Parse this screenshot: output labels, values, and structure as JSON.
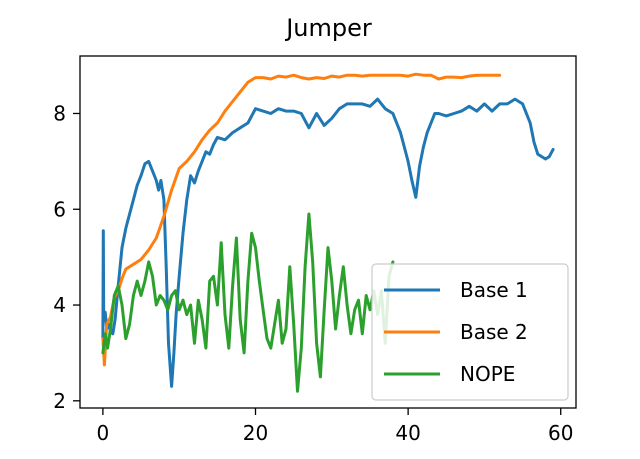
{
  "chart_data": {
    "type": "line",
    "title": "Jumper",
    "xlabel": "",
    "ylabel": "",
    "xlim": [
      -3,
      62
    ],
    "ylim": [
      1.85,
      9.2
    ],
    "xticks": [
      0,
      20,
      40,
      60
    ],
    "yticks": [
      2,
      4,
      6,
      8
    ],
    "grid": false,
    "legend_position": "lower-right",
    "series": [
      {
        "name": "Base 1",
        "color": "#1f77b4",
        "x": [
          0,
          0.05,
          0.1,
          0.3,
          0.5,
          0.8,
          1,
          1.3,
          1.6,
          2,
          2.5,
          3,
          3.5,
          4,
          4.5,
          5,
          5.5,
          6,
          6.5,
          7,
          7.3,
          7.6,
          8,
          8.3,
          8.6,
          9,
          9.3,
          9.6,
          10,
          10.5,
          11,
          11.5,
          12,
          12.5,
          13,
          13.5,
          14,
          14.5,
          15,
          16,
          17,
          18,
          19,
          20,
          21,
          22,
          23,
          24,
          25,
          26,
          27,
          28,
          29,
          30,
          31,
          32,
          33,
          34,
          35,
          36,
          37,
          38,
          39,
          40,
          40.5,
          41,
          41.5,
          42,
          42.5,
          43,
          43.5,
          44,
          45,
          46,
          47,
          48,
          49,
          50,
          51,
          52,
          53,
          54,
          55,
          56,
          56.5,
          57,
          57.5,
          58,
          58.5,
          59
        ],
        "y": [
          3.3,
          5.55,
          3.75,
          3.85,
          3.5,
          3.6,
          3.45,
          3.4,
          3.7,
          4.4,
          5.2,
          5.6,
          5.9,
          6.2,
          6.5,
          6.7,
          6.95,
          7.0,
          6.8,
          6.6,
          6.4,
          6.6,
          6.2,
          4.8,
          3.2,
          2.3,
          3.0,
          3.8,
          4.6,
          5.5,
          6.2,
          6.7,
          6.55,
          6.8,
          7.0,
          7.2,
          7.15,
          7.35,
          7.5,
          7.45,
          7.6,
          7.7,
          7.8,
          8.1,
          8.05,
          8.0,
          8.1,
          8.05,
          8.05,
          8.0,
          7.7,
          8.0,
          7.75,
          7.9,
          8.1,
          8.2,
          8.2,
          8.2,
          8.15,
          8.3,
          8.1,
          8.0,
          7.6,
          7.0,
          6.6,
          6.25,
          6.9,
          7.3,
          7.6,
          7.8,
          8.0,
          8.0,
          7.95,
          8.0,
          8.05,
          8.15,
          8.05,
          8.2,
          8.05,
          8.2,
          8.2,
          8.3,
          8.2,
          7.8,
          7.4,
          7.15,
          7.1,
          7.05,
          7.1,
          7.25
        ]
      },
      {
        "name": "Base 2",
        "color": "#ff7f0e",
        "x": [
          0,
          0.2,
          0.5,
          1,
          1.5,
          2,
          2.5,
          3,
          4,
          5,
          6,
          7,
          8,
          9,
          10,
          11,
          12,
          13,
          14,
          15,
          16,
          17,
          18,
          19,
          20,
          21,
          22,
          23,
          24,
          25,
          26,
          27,
          28,
          29,
          30,
          31,
          32,
          33,
          34,
          35,
          36,
          37,
          38,
          39,
          40,
          41,
          42,
          43,
          44,
          45,
          46,
          47,
          48,
          49,
          50,
          51,
          52
        ],
        "y": [
          3.3,
          2.75,
          3.6,
          3.75,
          4.15,
          4.3,
          4.55,
          4.75,
          4.85,
          4.95,
          5.15,
          5.4,
          5.85,
          6.4,
          6.85,
          7.0,
          7.2,
          7.45,
          7.65,
          7.8,
          8.05,
          8.25,
          8.45,
          8.65,
          8.75,
          8.75,
          8.72,
          8.78,
          8.76,
          8.8,
          8.75,
          8.72,
          8.75,
          8.73,
          8.78,
          8.76,
          8.8,
          8.8,
          8.78,
          8.8,
          8.8,
          8.8,
          8.8,
          8.8,
          8.78,
          8.82,
          8.8,
          8.8,
          8.72,
          8.76,
          8.76,
          8.75,
          8.78,
          8.8,
          8.8,
          8.8,
          8.8
        ]
      },
      {
        "name": "NOPE",
        "color": "#2ca02c",
        "x": [
          0,
          0.3,
          0.6,
          1,
          1.5,
          2,
          2.5,
          3,
          3.5,
          4,
          4.5,
          5,
          5.5,
          6,
          6.5,
          7,
          7.5,
          8,
          8.5,
          9,
          9.5,
          10,
          10.5,
          11,
          11.5,
          12,
          12.5,
          13,
          13.5,
          14,
          14.5,
          15,
          15.5,
          16,
          16.5,
          17,
          17.5,
          18,
          18.5,
          19,
          19.5,
          20,
          20.5,
          21,
          21.5,
          22,
          22.5,
          23,
          23.5,
          24,
          24.5,
          25,
          25.5,
          26,
          26.5,
          27,
          27.5,
          28,
          28.5,
          29,
          29.5,
          30,
          30.5,
          31,
          31.5,
          32,
          32.5,
          33,
          33.5,
          34,
          34.5,
          35,
          35.5,
          36,
          36.5,
          37,
          37.5,
          38
        ],
        "y": [
          3.0,
          3.4,
          3.1,
          3.5,
          4.2,
          4.4,
          4.0,
          3.3,
          3.6,
          4.2,
          4.5,
          4.2,
          4.5,
          4.9,
          4.6,
          4.0,
          4.2,
          4.1,
          3.9,
          4.2,
          4.3,
          3.9,
          4.1,
          3.8,
          4.0,
          3.2,
          4.1,
          3.7,
          3.1,
          4.5,
          4.6,
          4.0,
          5.3,
          3.8,
          3.1,
          4.4,
          5.4,
          3.7,
          3.0,
          4.5,
          5.5,
          5.2,
          4.5,
          3.9,
          3.3,
          3.1,
          3.6,
          4.1,
          3.2,
          3.5,
          4.8,
          3.6,
          2.2,
          3.1,
          4.8,
          5.9,
          4.9,
          3.2,
          2.5,
          3.9,
          5.2,
          4.5,
          3.5,
          4.2,
          4.8,
          4.0,
          3.4,
          3.9,
          4.1,
          3.4,
          4.2,
          3.9,
          4.3,
          3.8,
          4.3,
          3.2,
          4.6,
          4.9
        ]
      }
    ]
  }
}
